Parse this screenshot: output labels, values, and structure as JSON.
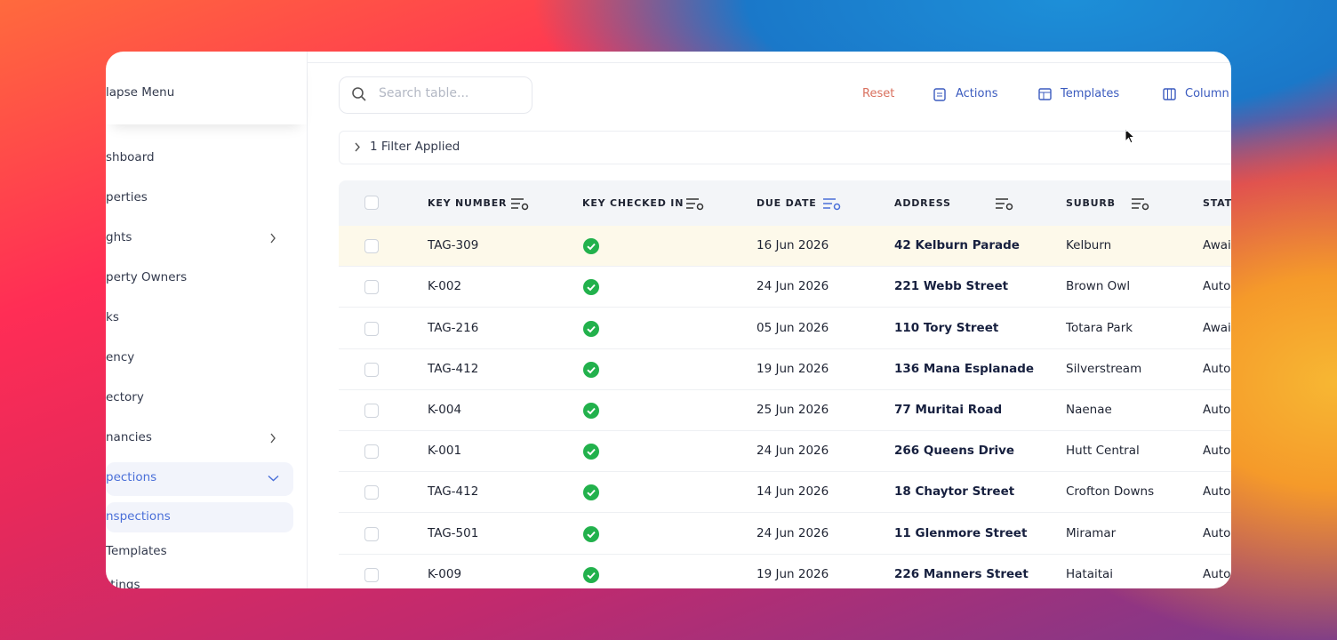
{
  "sidebar": {
    "collapse": "lapse Menu",
    "items": [
      "shboard",
      "perties",
      "ghts",
      "perty Owners",
      "ks",
      "ency",
      "ectory",
      "nancies",
      "pections"
    ],
    "subitems": [
      "nspections",
      "Templates",
      "ttings"
    ]
  },
  "toolbar": {
    "search_placeholder": "Search table...",
    "reset": "Reset",
    "actions": "Actions",
    "templates": "Templates",
    "columns": "Column"
  },
  "filter": "1 Filter Applied",
  "table": {
    "headers": [
      "KEY NUMBER",
      "KEY CHECKED IN",
      "DUE DATE",
      "ADDRESS",
      "SUBURB",
      "STAT"
    ],
    "rows": [
      [
        "TAG-309",
        "16 Jun 2026",
        "42 Kelburn Parade",
        "Kelburn",
        "Awai"
      ],
      [
        "K-002",
        "24 Jun 2026",
        "221 Webb Street",
        "Brown Owl",
        "Auto"
      ],
      [
        "TAG-216",
        "05 Jun 2026",
        "110 Tory Street",
        "Totara Park",
        "Awai"
      ],
      [
        "TAG-412",
        "19 Jun 2026",
        "136 Mana Esplanade",
        "Silverstream",
        "Auto"
      ],
      [
        "K-004",
        "25 Jun 2026",
        "77 Muritai Road",
        "Naenae",
        "Auto"
      ],
      [
        "K-001",
        "24 Jun 2026",
        "266 Queens Drive",
        "Hutt Central",
        "Auto"
      ],
      [
        "TAG-412",
        "14 Jun 2026",
        "18 Chaytor Street",
        "Crofton Downs",
        "Auto"
      ],
      [
        "TAG-501",
        "24 Jun 2026",
        "11 Glenmore Street",
        "Miramar",
        "Auto"
      ],
      [
        "K-009",
        "19 Jun 2026",
        "226 Manners Street",
        "Hataitai",
        "Auto"
      ]
    ]
  }
}
